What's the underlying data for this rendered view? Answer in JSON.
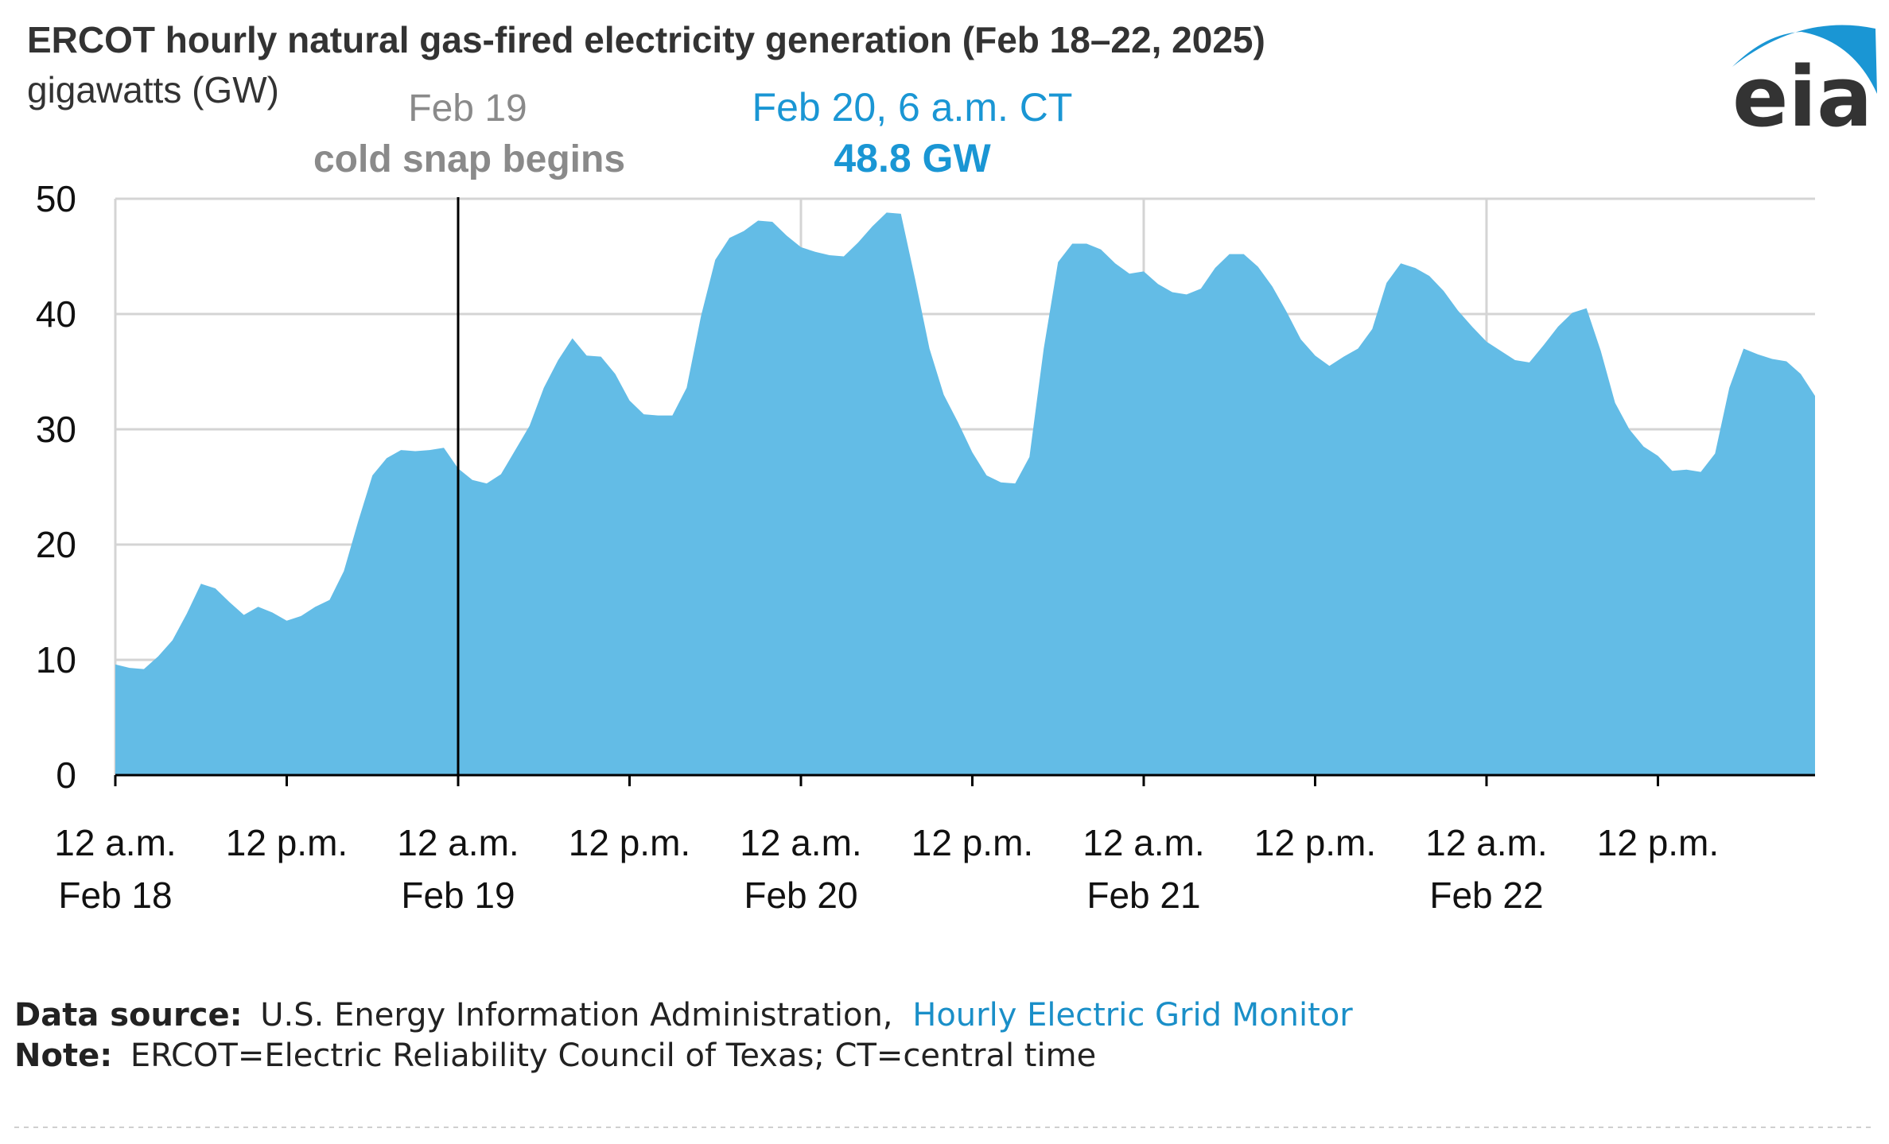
{
  "title": "ERCOT hourly natural gas-fired electricity generation (Feb 18–22, 2025)",
  "subtitle": "gigawatts (GW)",
  "logo": {
    "text": "eia",
    "swoosh_color": "#1a96d4"
  },
  "annotations": {
    "cold_snap_date": "Feb 19",
    "cold_snap_label": "cold snap begins",
    "peak_time": "Feb 20, 6 a.m. CT",
    "peak_value": "48.8 GW"
  },
  "footer": {
    "source_label": "Data source:",
    "source_text": "U.S. Energy Information Administration,",
    "source_link": "Hourly Electric Grid Monitor",
    "note_label": "Note:",
    "note_text": "ERCOT=Electric Reliability Council of Texas; CT=central time"
  },
  "colors": {
    "area": "#63bce6",
    "grid": "#d4d4d4",
    "axis": "#000000",
    "annotation_blue": "#1a96d4",
    "annotation_gray": "#8a8a8a"
  },
  "chart_data": {
    "type": "area",
    "title": "ERCOT hourly natural gas-fired electricity generation (Feb 18–22, 2025)",
    "ylabel": "gigawatts (GW)",
    "ylim": [
      0,
      50
    ],
    "yticks": [
      "0",
      "10",
      "20",
      "30",
      "40",
      "50"
    ],
    "xlim": [
      "2025-02-18 12 a.m.",
      "2025-02-22 11 p.m."
    ],
    "xticks": [
      {
        "line1": "12 a.m.",
        "line2": "Feb 18"
      },
      {
        "line1": "12 p.m.",
        "line2": ""
      },
      {
        "line1": "12 a.m.",
        "line2": "Feb 19"
      },
      {
        "line1": "12 p.m.",
        "line2": ""
      },
      {
        "line1": "12 a.m.",
        "line2": "Feb 20"
      },
      {
        "line1": "12 p.m.",
        "line2": ""
      },
      {
        "line1": "12 a.m.",
        "line2": "Feb 21"
      },
      {
        "line1": "12 p.m.",
        "line2": ""
      },
      {
        "line1": "12 a.m.",
        "line2": "Feb 22"
      },
      {
        "line1": "12 p.m.",
        "line2": ""
      }
    ],
    "grid": true,
    "marker_line": "Feb 19 12 a.m.",
    "series": [
      {
        "values": [
          9.6,
          9.3,
          9.2,
          10.3,
          11.7,
          14.0,
          16.6,
          16.2,
          15.0,
          13.9,
          14.6,
          14.1,
          13.4,
          13.8,
          14.6,
          15.2,
          17.7,
          22.0,
          26.0,
          27.5,
          28.2,
          28.1,
          28.2,
          28.4,
          26.6,
          25.6,
          25.3,
          26.1,
          28.2,
          30.3,
          33.6,
          36.0,
          37.9,
          36.4,
          36.3,
          34.8,
          32.5,
          31.3,
          31.2,
          31.2,
          33.6,
          39.8,
          44.7,
          46.6,
          47.2,
          48.1,
          48.0,
          46.8,
          45.8,
          45.4,
          45.1,
          45.0,
          46.2,
          47.6,
          48.8,
          48.7,
          43.0,
          37.0,
          33.0,
          30.6,
          28.0,
          26.0,
          25.4,
          25.3,
          27.6,
          37.0,
          44.5,
          46.1,
          46.1,
          45.6,
          44.4,
          43.5,
          43.7,
          42.6,
          41.9,
          41.7,
          42.2,
          44.0,
          45.2,
          45.2,
          44.1,
          42.4,
          40.2,
          37.8,
          36.4,
          35.5,
          36.3,
          37.0,
          38.7,
          42.7,
          44.4,
          44.0,
          43.3,
          42.0,
          40.3,
          38.9,
          37.6,
          36.8,
          36.0,
          35.8,
          37.3,
          38.9,
          40.1,
          40.5,
          36.8,
          32.3,
          30.0,
          28.5,
          27.7,
          26.4,
          26.5,
          26.3,
          27.9,
          33.6,
          37.0,
          36.5,
          36.1,
          35.9,
          34.8,
          32.9
        ]
      }
    ],
    "annotations": [
      {
        "x": "Feb 19 12 a.m.",
        "text": "Feb 19 / cold snap begins"
      },
      {
        "x": "Feb 20 6 a.m.",
        "y": 48.8,
        "text": "Feb 20, 6 a.m. CT / 48.8 GW"
      }
    ]
  }
}
